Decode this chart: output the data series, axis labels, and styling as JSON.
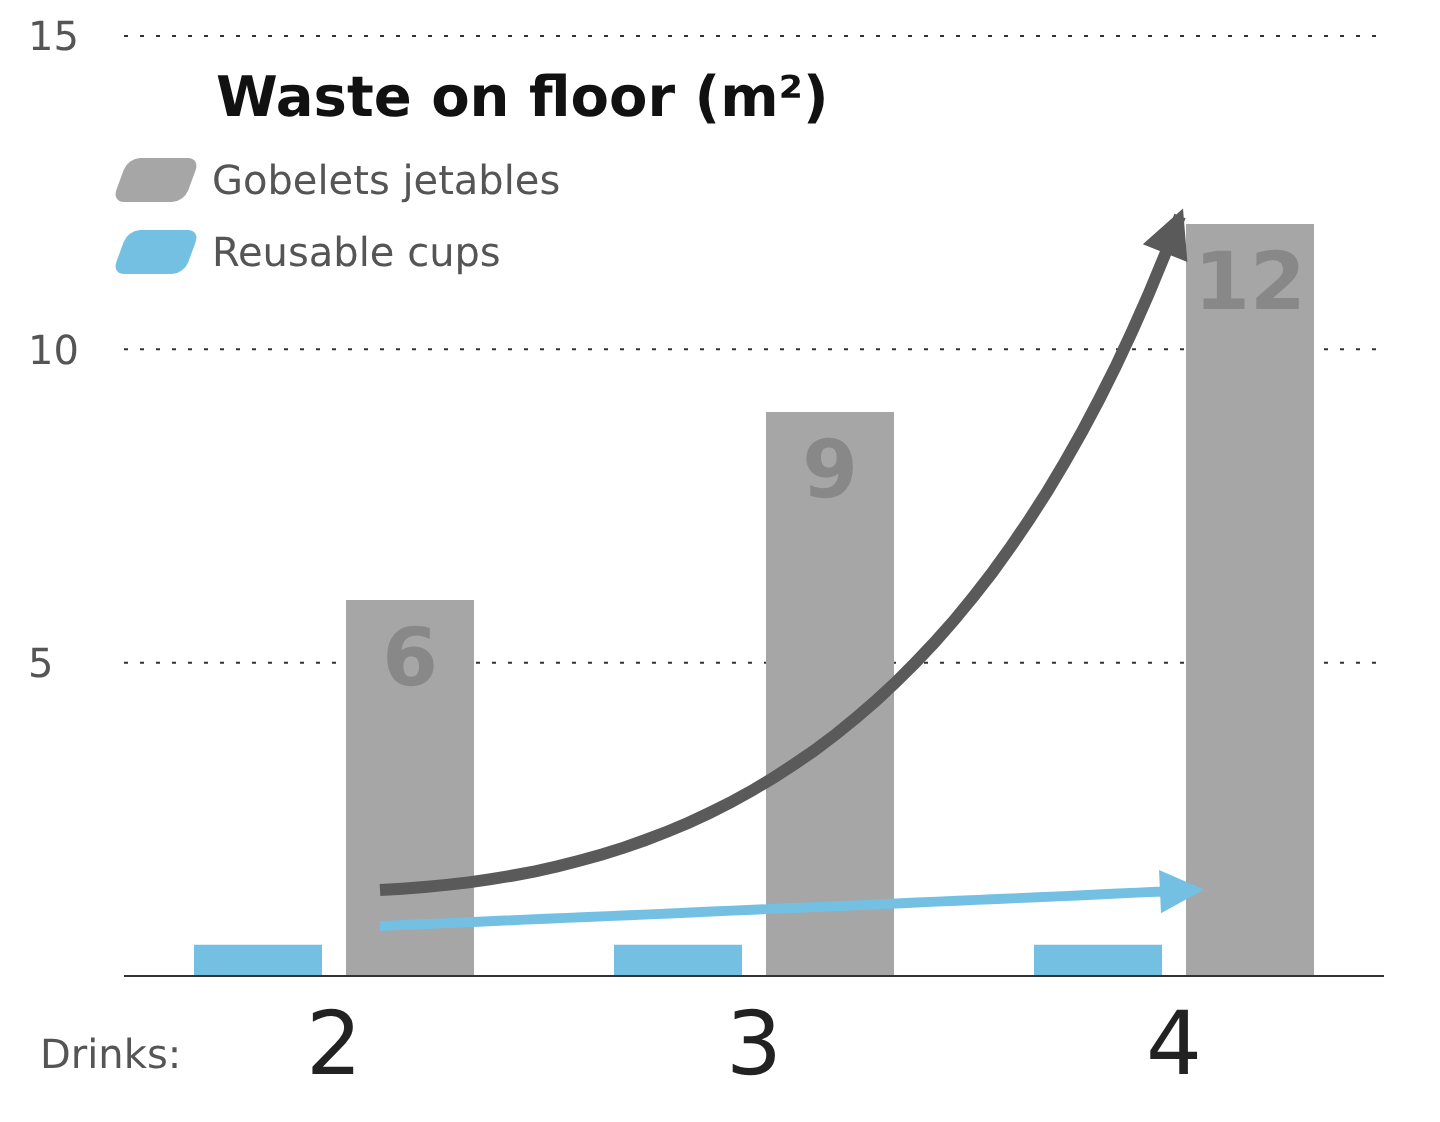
{
  "chart_data": {
    "type": "bar",
    "title": "Waste on floor (m²)",
    "xlabel": "Drinks:",
    "categories": [
      "2",
      "3",
      "4"
    ],
    "series": [
      {
        "name": "Reusable cups",
        "color": "#74c0e3",
        "values": [
          0.5,
          0.5,
          0.5
        ]
      },
      {
        "name": "Gobelets jetables",
        "color": "#a6a6a6",
        "values": [
          6,
          9,
          12
        ],
        "value_labels": [
          "6",
          "9",
          "12"
        ]
      }
    ],
    "ylim": [
      0,
      15
    ],
    "yticks": [
      5,
      10,
      15
    ],
    "grid": "y",
    "legend": "top left"
  }
}
